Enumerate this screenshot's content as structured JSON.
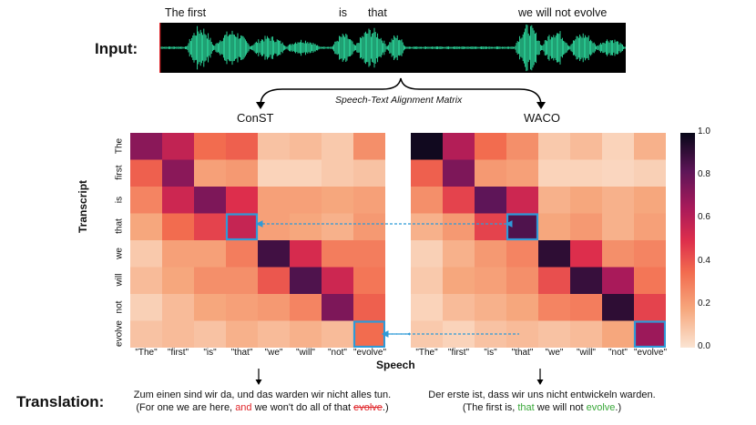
{
  "input_label": "Input:",
  "waveform_words": {
    "w1": "The first",
    "w2": "is",
    "w3": "that",
    "w4": "we will not evolve"
  },
  "brace_caption": "Speech-Text Alignment Matrix",
  "left_title": "ConST",
  "right_title": "WACO",
  "y_axis_label": "Transcript",
  "x_axis_label": "Speech",
  "row_labels": [
    "The",
    "first",
    "is",
    "that",
    "we",
    "will",
    "not",
    "evolve"
  ],
  "col_labels": [
    "\"The\"",
    "\"first\"",
    "\"is\"",
    "\"that\"",
    "\"we\"",
    "\"will\"",
    "\"not\"",
    "\"evolve\""
  ],
  "colorbar_ticks": [
    "1.0",
    "0.8",
    "0.6",
    "0.4",
    "0.2",
    "0.0"
  ],
  "translation_label": "Translation:",
  "left_translation": {
    "line1": "Zum einen sind wir da, und das warden wir nicht alles tun.",
    "line2_a": "(For one we are here, ",
    "line2_red": "and",
    "line2_b": " we won't do all of that ",
    "line2_strike": "evolve",
    "line2_c": ".)"
  },
  "right_translation": {
    "line1": "Der erste ist, dass wir uns nicht entwickeln warden.",
    "line2_a": "(The first is, ",
    "line2_green1": "that",
    "line2_b": " we will not ",
    "line2_green2": "evolve",
    "line2_c": ".)"
  },
  "colors": {
    "highlight": "#2f9ad8",
    "waveform_bg": "#000000",
    "waveform": "#2fe6a6"
  },
  "chart_data": [
    {
      "type": "heatmap",
      "title": "ConST",
      "xlabel": "Speech",
      "ylabel": "Transcript",
      "x": [
        "\"The\"",
        "\"first\"",
        "\"is\"",
        "\"that\"",
        "\"we\"",
        "\"will\"",
        "\"not\"",
        "\"evolve\""
      ],
      "y": [
        "The",
        "first",
        "is",
        "that",
        "we",
        "will",
        "not",
        "evolve"
      ],
      "range": [
        0.0,
        1.0
      ],
      "values": [
        [
          0.72,
          0.58,
          0.35,
          0.38,
          0.1,
          0.12,
          0.08,
          0.25
        ],
        [
          0.38,
          0.72,
          0.2,
          0.22,
          0.05,
          0.05,
          0.08,
          0.1
        ],
        [
          0.28,
          0.55,
          0.75,
          0.5,
          0.2,
          0.2,
          0.18,
          0.2
        ],
        [
          0.18,
          0.35,
          0.45,
          0.57,
          0.2,
          0.18,
          0.15,
          0.22
        ],
        [
          0.08,
          0.2,
          0.2,
          0.3,
          0.88,
          0.52,
          0.3,
          0.3
        ],
        [
          0.12,
          0.18,
          0.25,
          0.25,
          0.4,
          0.85,
          0.55,
          0.32
        ],
        [
          0.06,
          0.12,
          0.18,
          0.2,
          0.22,
          0.28,
          0.75,
          0.38
        ],
        [
          0.1,
          0.12,
          0.1,
          0.15,
          0.12,
          0.15,
          0.12,
          0.35
        ]
      ],
      "highlights": [
        [
          3,
          3
        ],
        [
          7,
          7
        ]
      ]
    },
    {
      "type": "heatmap",
      "title": "WACO",
      "xlabel": "Speech",
      "ylabel": "Transcript",
      "x": [
        "\"The\"",
        "\"first\"",
        "\"is\"",
        "\"that\"",
        "\"we\"",
        "\"will\"",
        "\"not\"",
        "\"evolve\""
      ],
      "y": [
        "The",
        "first",
        "is",
        "that",
        "we",
        "will",
        "not",
        "evolve"
      ],
      "range": [
        0.0,
        1.0
      ],
      "values": [
        [
          0.98,
          0.62,
          0.35,
          0.25,
          0.08,
          0.12,
          0.05,
          0.15
        ],
        [
          0.38,
          0.75,
          0.22,
          0.2,
          0.05,
          0.05,
          0.04,
          0.06
        ],
        [
          0.25,
          0.45,
          0.82,
          0.55,
          0.15,
          0.18,
          0.15,
          0.18
        ],
        [
          0.15,
          0.22,
          0.45,
          0.85,
          0.18,
          0.22,
          0.15,
          0.2
        ],
        [
          0.06,
          0.15,
          0.22,
          0.28,
          0.92,
          0.5,
          0.25,
          0.28
        ],
        [
          0.08,
          0.18,
          0.2,
          0.25,
          0.42,
          0.9,
          0.65,
          0.32
        ],
        [
          0.05,
          0.12,
          0.15,
          0.18,
          0.28,
          0.3,
          0.92,
          0.45
        ],
        [
          0.08,
          0.05,
          0.1,
          0.12,
          0.1,
          0.12,
          0.18,
          0.68
        ]
      ],
      "highlights": [
        [
          3,
          3
        ],
        [
          7,
          7
        ]
      ]
    }
  ]
}
